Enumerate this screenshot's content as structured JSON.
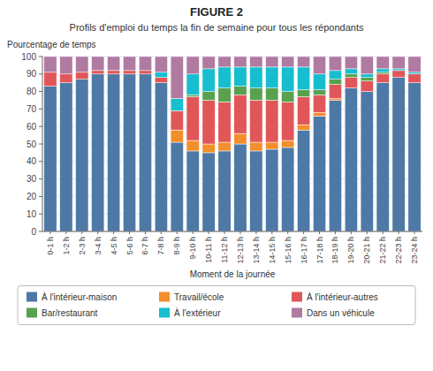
{
  "chart_data": {
    "type": "bar",
    "stacked": true,
    "title": "FIGURE 2",
    "subtitle": "Profils d'emploi du temps la fin de semaine pour tous les répondants",
    "ylabel": "Pourcentage de temps",
    "xlabel": "Moment de la journée",
    "categories": [
      "0-1 h",
      "1-2 h",
      "2-3 h",
      "3-4 h",
      "4-5 h",
      "5-6 h",
      "6-7 h",
      "7-8 h",
      "8-9 h",
      "9-10 h",
      "10-11 h",
      "11-12 h",
      "12-13 h",
      "13-14 h",
      "14-15 h",
      "15-16 h",
      "16-17 h",
      "17-18 h",
      "18-19 h",
      "19-20 h",
      "20-21 h",
      "21-22 h",
      "22-23 h",
      "23-24 h"
    ],
    "series": [
      {
        "name": "À l'intérieur-maison",
        "color": "#4e79a7",
        "values": [
          83,
          85,
          87,
          90,
          90,
          90,
          90,
          85,
          51,
          46,
          45,
          46,
          50,
          46,
          47,
          48,
          58,
          66,
          75,
          82,
          80,
          85,
          88,
          85
        ]
      },
      {
        "name": "Travail/école",
        "color": "#f28e2b",
        "values": [
          0,
          0,
          0,
          0,
          0,
          0,
          0,
          0,
          7,
          6,
          5,
          5,
          6,
          5,
          4,
          4,
          3,
          2,
          1,
          0,
          0,
          0,
          0,
          0
        ]
      },
      {
        "name": "À l'intérieur-autres",
        "color": "#e15759",
        "values": [
          8,
          5,
          4,
          2,
          2,
          2,
          2,
          3,
          11,
          25,
          25,
          23,
          22,
          24,
          24,
          22,
          16,
          10,
          8,
          6,
          6,
          5,
          4,
          5
        ]
      },
      {
        "name": "Bar/restaurant",
        "color": "#59a14f",
        "values": [
          0,
          0,
          0,
          0,
          0,
          0,
          0,
          0,
          0,
          1,
          5,
          8,
          5,
          7,
          7,
          6,
          4,
          3,
          3,
          2,
          2,
          1,
          0,
          0
        ]
      },
      {
        "name": "À l'extérieur",
        "color": "#17becf",
        "values": [
          0,
          0,
          0,
          0,
          0,
          0,
          0,
          3,
          7,
          12,
          13,
          12,
          11,
          12,
          12,
          14,
          13,
          9,
          5,
          3,
          2,
          2,
          1,
          1
        ]
      },
      {
        "name": "Dans un véhicule",
        "color": "#b07aa1",
        "values": [
          9,
          10,
          9,
          8,
          8,
          8,
          8,
          9,
          24,
          10,
          7,
          6,
          6,
          6,
          6,
          6,
          6,
          10,
          8,
          7,
          10,
          7,
          7,
          9
        ]
      }
    ],
    "ylim": [
      0,
      100
    ],
    "yticks": [
      0,
      10,
      20,
      30,
      40,
      50,
      60,
      70,
      80,
      90,
      100
    ],
    "grid": true,
    "legend": "bottom"
  }
}
